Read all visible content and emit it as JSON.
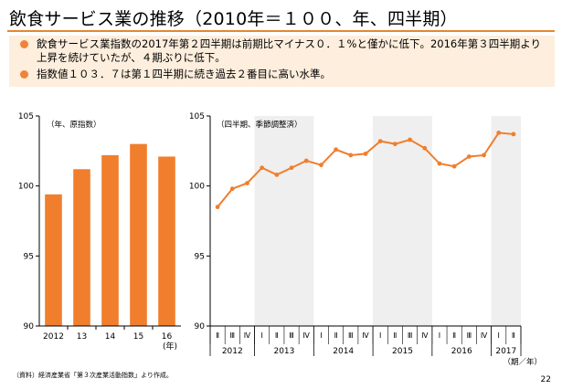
{
  "slide": {
    "title": "飲食サービス業の推移（2010年＝１００、年、四半期）",
    "bullets": [
      "飲食サービス業指数の2017年第２四半期は前期比マイナス０．１%と僅かに低下。2016年第３四半期より上昇を続けていたが、４期ぶりに低下。",
      "指数値１０３．７は第１四半期に続き過去２番目に高い水準。"
    ],
    "source": "（資料）経済産業省「第３次産業活動指数」より作成。",
    "page_number": "22",
    "accent_color": "#e8862e"
  },
  "chart_data": [
    {
      "type": "bar",
      "annotation": "（年、原指数）",
      "categories": [
        "2012",
        "13",
        "14",
        "15",
        "16"
      ],
      "values": [
        99.4,
        101.2,
        102.2,
        103.0,
        102.1
      ],
      "ylim": [
        90,
        105
      ],
      "yticks": [
        90,
        95,
        100,
        105
      ],
      "unit_label": "(年)",
      "bar_color": "#f07e2d",
      "grid": false
    },
    {
      "type": "line",
      "annotation": "（四半期、季節調整済）",
      "quarter_labels": [
        "Ⅱ",
        "Ⅲ",
        "Ⅳ",
        "Ⅰ",
        "Ⅱ",
        "Ⅲ",
        "Ⅳ",
        "Ⅰ",
        "Ⅱ",
        "Ⅲ",
        "Ⅳ",
        "Ⅰ",
        "Ⅱ",
        "Ⅲ",
        "Ⅳ",
        "Ⅰ",
        "Ⅱ",
        "Ⅲ",
        "Ⅳ",
        "Ⅰ",
        "Ⅱ"
      ],
      "years": [
        {
          "label": "2012",
          "quarters": 3
        },
        {
          "label": "2013",
          "quarters": 4
        },
        {
          "label": "2014",
          "quarters": 4
        },
        {
          "label": "2015",
          "quarters": 4
        },
        {
          "label": "2016",
          "quarters": 4
        },
        {
          "label": "2017",
          "quarters": 2
        }
      ],
      "values": [
        98.5,
        99.8,
        100.2,
        101.3,
        100.8,
        101.3,
        101.8,
        101.5,
        102.6,
        102.2,
        102.3,
        103.2,
        103.0,
        103.3,
        102.7,
        101.6,
        101.4,
        102.1,
        102.2,
        103.8,
        103.7
      ],
      "ylim": [
        90,
        105
      ],
      "yticks": [
        90,
        95,
        100,
        105
      ],
      "unit_label": "（期／年）",
      "line_color": "#f07e2d",
      "shaded_band_color": "#efefef",
      "grid": false
    }
  ]
}
